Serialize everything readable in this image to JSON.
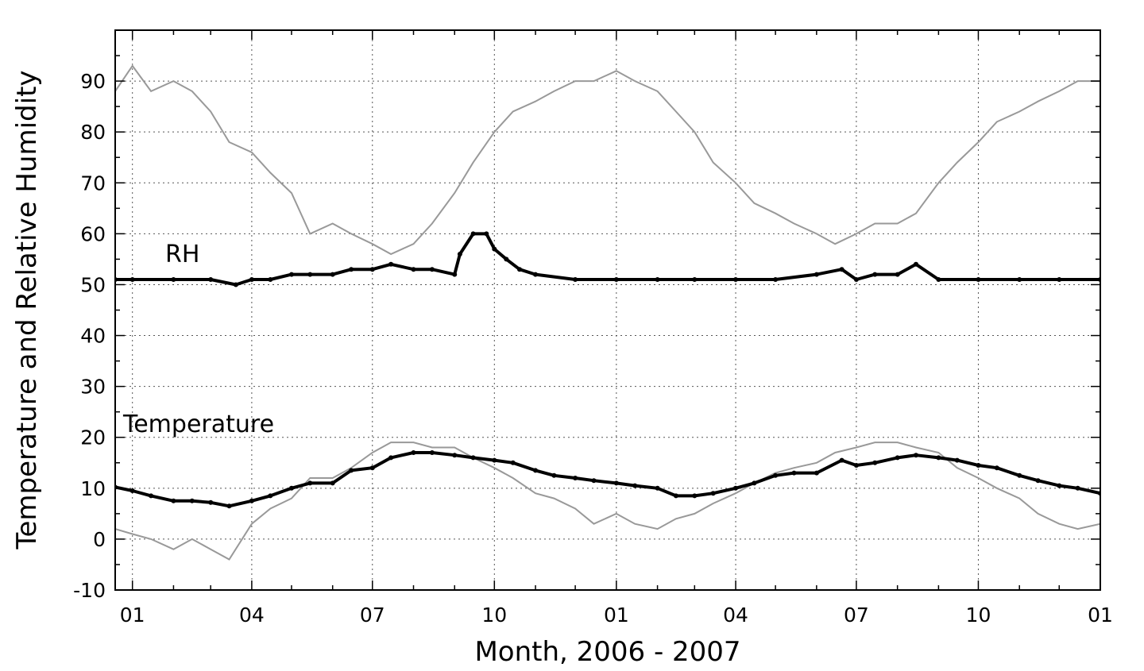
{
  "chart_data": {
    "type": "line",
    "title": "",
    "xlabel": "Month, 2006 - 2007",
    "ylabel": "Temperature and Relative Humidity",
    "ylim": [
      -10,
      100
    ],
    "y_ticks": [
      "-10",
      "0",
      "10",
      "20",
      "30",
      "40",
      "50",
      "60",
      "70",
      "80",
      "90"
    ],
    "x_range": [
      "2005-12-19",
      "2008-01-01"
    ],
    "x_ticks": [
      {
        "date": "2006-01-01",
        "label": "01"
      },
      {
        "date": "2006-04-01",
        "label": "04"
      },
      {
        "date": "2006-07-01",
        "label": "07"
      },
      {
        "date": "2006-10-01",
        "label": "10"
      },
      {
        "date": "2007-01-01",
        "label": "01"
      },
      {
        "date": "2007-04-01",
        "label": "04"
      },
      {
        "date": "2007-07-01",
        "label": "07"
      },
      {
        "date": "2007-10-01",
        "label": "10"
      },
      {
        "date": "2008-01-01",
        "label": "01"
      }
    ],
    "grid": true,
    "annotations": [
      {
        "text": "RH",
        "series": "indoor_rh"
      },
      {
        "text": "Temperature",
        "series": "indoor_temp"
      }
    ],
    "series": [
      {
        "key": "outdoor_rh",
        "style": "gray line",
        "color": "#999999",
        "points": [
          [
            "2005-12-19",
            88
          ],
          [
            "2006-01-01",
            93
          ],
          [
            "2006-01-15",
            88
          ],
          [
            "2006-02-01",
            90
          ],
          [
            "2006-02-15",
            88
          ],
          [
            "2006-03-01",
            84
          ],
          [
            "2006-03-15",
            78
          ],
          [
            "2006-04-01",
            76
          ],
          [
            "2006-04-15",
            72
          ],
          [
            "2006-05-01",
            68
          ],
          [
            "2006-05-15",
            60
          ],
          [
            "2006-06-01",
            62
          ],
          [
            "2006-06-15",
            60
          ],
          [
            "2006-07-01",
            58
          ],
          [
            "2006-07-15",
            56
          ],
          [
            "2006-08-01",
            58
          ],
          [
            "2006-08-15",
            62
          ],
          [
            "2006-09-01",
            68
          ],
          [
            "2006-09-15",
            74
          ],
          [
            "2006-10-01",
            80
          ],
          [
            "2006-10-15",
            84
          ],
          [
            "2006-11-01",
            86
          ],
          [
            "2006-11-15",
            88
          ],
          [
            "2006-12-01",
            90
          ],
          [
            "2006-12-15",
            90
          ],
          [
            "2007-01-01",
            92
          ],
          [
            "2007-01-15",
            90
          ],
          [
            "2007-02-01",
            88
          ],
          [
            "2007-02-15",
            84
          ],
          [
            "2007-03-01",
            80
          ],
          [
            "2007-03-15",
            74
          ],
          [
            "2007-04-01",
            70
          ],
          [
            "2007-04-15",
            66
          ],
          [
            "2007-05-01",
            64
          ],
          [
            "2007-05-15",
            62
          ],
          [
            "2007-06-01",
            60
          ],
          [
            "2007-06-15",
            58
          ],
          [
            "2007-07-01",
            60
          ],
          [
            "2007-07-15",
            62
          ],
          [
            "2007-08-01",
            62
          ],
          [
            "2007-08-15",
            64
          ],
          [
            "2007-09-01",
            70
          ],
          [
            "2007-09-15",
            74
          ],
          [
            "2007-10-01",
            78
          ],
          [
            "2007-10-15",
            82
          ],
          [
            "2007-11-01",
            84
          ],
          [
            "2007-11-15",
            86
          ],
          [
            "2007-12-01",
            88
          ],
          [
            "2007-12-15",
            90
          ],
          [
            "2008-01-01",
            90
          ]
        ]
      },
      {
        "key": "outdoor_temp",
        "style": "gray line",
        "color": "#999999",
        "points": [
          [
            "2005-12-19",
            2
          ],
          [
            "2006-01-01",
            1
          ],
          [
            "2006-01-15",
            0
          ],
          [
            "2006-02-01",
            -2
          ],
          [
            "2006-02-15",
            0
          ],
          [
            "2006-03-01",
            -2
          ],
          [
            "2006-03-15",
            -4
          ],
          [
            "2006-04-01",
            3
          ],
          [
            "2006-04-15",
            6
          ],
          [
            "2006-05-01",
            8
          ],
          [
            "2006-05-15",
            12
          ],
          [
            "2006-06-01",
            12
          ],
          [
            "2006-06-15",
            14
          ],
          [
            "2006-07-01",
            17
          ],
          [
            "2006-07-15",
            19
          ],
          [
            "2006-08-01",
            19
          ],
          [
            "2006-08-15",
            18
          ],
          [
            "2006-09-01",
            18
          ],
          [
            "2006-09-15",
            16
          ],
          [
            "2006-10-01",
            14
          ],
          [
            "2006-10-15",
            12
          ],
          [
            "2006-11-01",
            9
          ],
          [
            "2006-11-15",
            8
          ],
          [
            "2006-12-01",
            6
          ],
          [
            "2006-12-15",
            3
          ],
          [
            "2007-01-01",
            5
          ],
          [
            "2007-01-15",
            3
          ],
          [
            "2007-02-01",
            2
          ],
          [
            "2007-02-15",
            4
          ],
          [
            "2007-03-01",
            5
          ],
          [
            "2007-03-15",
            7
          ],
          [
            "2007-04-01",
            9
          ],
          [
            "2007-04-15",
            11
          ],
          [
            "2007-05-01",
            13
          ],
          [
            "2007-05-15",
            14
          ],
          [
            "2007-06-01",
            15
          ],
          [
            "2007-06-15",
            17
          ],
          [
            "2007-07-01",
            18
          ],
          [
            "2007-07-15",
            19
          ],
          [
            "2007-08-01",
            19
          ],
          [
            "2007-08-15",
            18
          ],
          [
            "2007-09-01",
            17
          ],
          [
            "2007-09-15",
            14
          ],
          [
            "2007-10-01",
            12
          ],
          [
            "2007-10-15",
            10
          ],
          [
            "2007-11-01",
            8
          ],
          [
            "2007-11-15",
            5
          ],
          [
            "2007-12-01",
            3
          ],
          [
            "2007-12-15",
            2
          ],
          [
            "2008-01-01",
            3
          ]
        ]
      },
      {
        "key": "indoor_rh",
        "style": "black dots",
        "color": "#000000",
        "points": [
          [
            "2005-12-19",
            51
          ],
          [
            "2006-01-01",
            51
          ],
          [
            "2006-02-01",
            51
          ],
          [
            "2006-03-01",
            51
          ],
          [
            "2006-03-20",
            50
          ],
          [
            "2006-04-01",
            51
          ],
          [
            "2006-04-15",
            51
          ],
          [
            "2006-05-01",
            52
          ],
          [
            "2006-05-15",
            52
          ],
          [
            "2006-06-01",
            52
          ],
          [
            "2006-06-15",
            53
          ],
          [
            "2006-07-01",
            53
          ],
          [
            "2006-07-15",
            54
          ],
          [
            "2006-08-01",
            53
          ],
          [
            "2006-08-15",
            53
          ],
          [
            "2006-09-01",
            52
          ],
          [
            "2006-09-05",
            56
          ],
          [
            "2006-09-15",
            60
          ],
          [
            "2006-09-25",
            60
          ],
          [
            "2006-10-01",
            57
          ],
          [
            "2006-10-10",
            55
          ],
          [
            "2006-10-20",
            53
          ],
          [
            "2006-11-01",
            52
          ],
          [
            "2006-12-01",
            51
          ],
          [
            "2007-01-01",
            51
          ],
          [
            "2007-02-01",
            51
          ],
          [
            "2007-03-01",
            51
          ],
          [
            "2007-04-01",
            51
          ],
          [
            "2007-05-01",
            51
          ],
          [
            "2007-06-01",
            52
          ],
          [
            "2007-06-20",
            53
          ],
          [
            "2007-07-01",
            51
          ],
          [
            "2007-07-15",
            52
          ],
          [
            "2007-08-01",
            52
          ],
          [
            "2007-08-15",
            54
          ],
          [
            "2007-09-01",
            51
          ],
          [
            "2007-10-01",
            51
          ],
          [
            "2007-11-01",
            51
          ],
          [
            "2007-12-01",
            51
          ],
          [
            "2008-01-01",
            51
          ]
        ]
      },
      {
        "key": "indoor_temp",
        "style": "black dots",
        "color": "#000000",
        "points": [
          [
            "2005-12-19",
            10.2
          ],
          [
            "2006-01-01",
            9.5
          ],
          [
            "2006-01-15",
            8.5
          ],
          [
            "2006-02-01",
            7.5
          ],
          [
            "2006-02-15",
            7.5
          ],
          [
            "2006-03-01",
            7.2
          ],
          [
            "2006-03-15",
            6.5
          ],
          [
            "2006-04-01",
            7.5
          ],
          [
            "2006-04-15",
            8.5
          ],
          [
            "2006-05-01",
            10
          ],
          [
            "2006-05-15",
            11
          ],
          [
            "2006-06-01",
            11
          ],
          [
            "2006-06-15",
            13.5
          ],
          [
            "2006-07-01",
            14
          ],
          [
            "2006-07-15",
            16
          ],
          [
            "2006-08-01",
            17
          ],
          [
            "2006-08-15",
            17
          ],
          [
            "2006-09-01",
            16.5
          ],
          [
            "2006-09-15",
            16
          ],
          [
            "2006-10-01",
            15.5
          ],
          [
            "2006-10-15",
            15
          ],
          [
            "2006-11-01",
            13.5
          ],
          [
            "2006-11-15",
            12.5
          ],
          [
            "2006-12-01",
            12
          ],
          [
            "2006-12-15",
            11.5
          ],
          [
            "2007-01-01",
            11
          ],
          [
            "2007-01-15",
            10.5
          ],
          [
            "2007-02-01",
            10
          ],
          [
            "2007-02-15",
            8.5
          ],
          [
            "2007-03-01",
            8.5
          ],
          [
            "2007-03-15",
            9
          ],
          [
            "2007-04-01",
            10
          ],
          [
            "2007-04-15",
            11
          ],
          [
            "2007-05-01",
            12.5
          ],
          [
            "2007-05-15",
            13
          ],
          [
            "2007-06-01",
            13
          ],
          [
            "2007-06-20",
            15.5
          ],
          [
            "2007-07-01",
            14.5
          ],
          [
            "2007-07-15",
            15
          ],
          [
            "2007-08-01",
            16
          ],
          [
            "2007-08-15",
            16.5
          ],
          [
            "2007-09-01",
            16
          ],
          [
            "2007-09-15",
            15.5
          ],
          [
            "2007-10-01",
            14.5
          ],
          [
            "2007-10-15",
            14
          ],
          [
            "2007-11-01",
            12.5
          ],
          [
            "2007-11-15",
            11.5
          ],
          [
            "2007-12-01",
            10.5
          ],
          [
            "2007-12-15",
            10
          ],
          [
            "2008-01-01",
            9
          ]
        ]
      }
    ]
  }
}
